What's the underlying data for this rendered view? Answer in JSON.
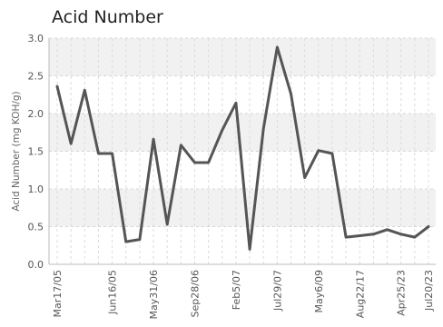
{
  "chart_data": {
    "type": "line",
    "title": "Acid Number",
    "ylabel": "Acid Number (mg KOH/g)",
    "xlabel": "",
    "ylim": [
      0,
      3.0
    ],
    "yticks": [
      "0.0",
      "0.5",
      "1.0",
      "1.5",
      "2.0",
      "2.5",
      "3.0"
    ],
    "xtick_labels": [
      "Mar17/05",
      "Jun16/05",
      "May31/06",
      "Sep28/06",
      "Feb5/07",
      "Jul29/07",
      "May6/09",
      "Aug22/17",
      "Apr25/23",
      "Jul20/23"
    ],
    "grid": true,
    "series_color": "#555555",
    "values": [
      2.36,
      1.6,
      2.31,
      1.47,
      1.47,
      0.3,
      0.33,
      1.66,
      0.53,
      1.58,
      1.35,
      1.35,
      1.78,
      2.14,
      0.2,
      1.8,
      2.88,
      2.26,
      1.15,
      1.51,
      1.47,
      0.36,
      0.38,
      0.4,
      0.46,
      0.4,
      0.36,
      0.5
    ]
  }
}
